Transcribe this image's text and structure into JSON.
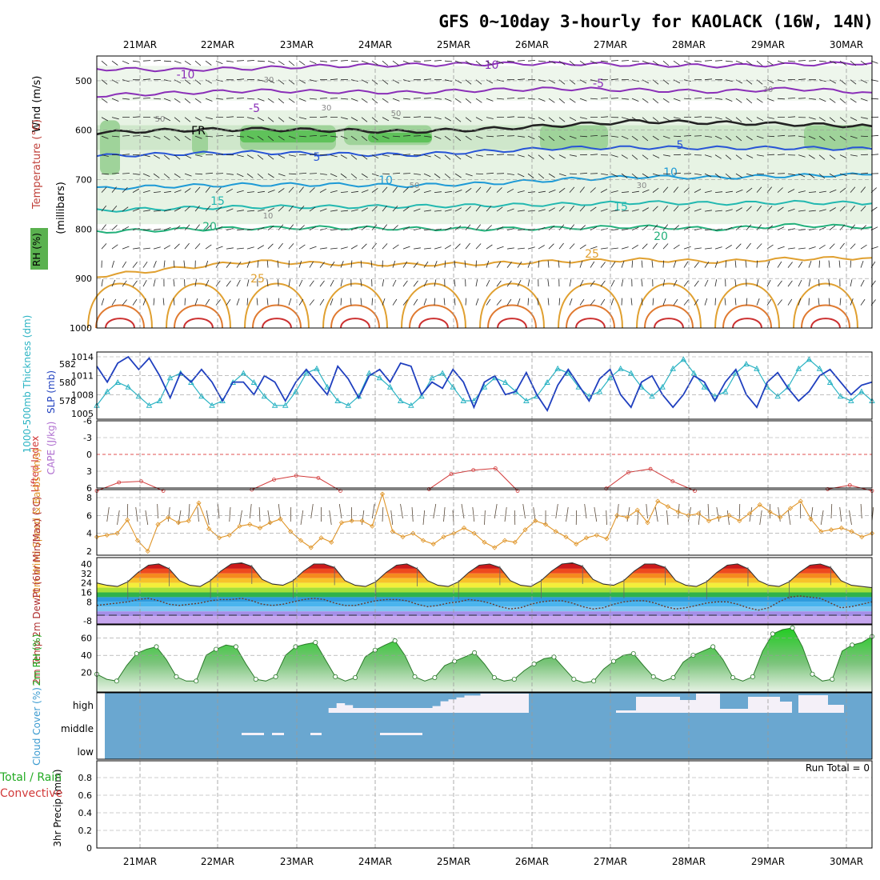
{
  "title": "GFS 0~10day 3-hourly for KAOLACK (16W, 14N)",
  "days": [
    "21MAR",
    "22MAR",
    "23MAR",
    "24MAR",
    "25MAR",
    "26MAR",
    "27MAR",
    "28MAR",
    "29MAR",
    "30MAR"
  ],
  "colors": {
    "grid": "#9a9a9a",
    "slp": "#1f3fbf",
    "thickness": "#2ab3c3",
    "li": "#d23a3a",
    "wind_speed": "#e0962a",
    "rh_green": "#4caf50",
    "cloud_bg": "#6aa7d0",
    "cloud_fill": "#f4f0f8"
  },
  "chart_data": [
    {
      "type": "contour",
      "panel": "upper-air",
      "xlabel": "",
      "ylabel": "(millibars)",
      "side_labels": [
        "Wind (m/s)",
        "Temperature (°C)",
        "RH (%)"
      ],
      "yticks": [
        500,
        600,
        700,
        800,
        900,
        1000
      ],
      "isotherm_labels": [
        "-10",
        "-10",
        "-5",
        "-5",
        "5",
        "5",
        "10",
        "10",
        "15",
        "15",
        "20",
        "20",
        "25",
        "25",
        "FR"
      ],
      "rh_labels": [
        "30",
        "30",
        "50",
        "50",
        "50",
        "30",
        "30",
        "10"
      ],
      "isotherms": [
        {
          "name": "-10",
          "p": [
            476,
            478,
            475,
            470,
            468,
            466,
            465,
            468,
            470,
            467,
            464
          ]
        },
        {
          "name": "-5",
          "p": [
            530,
            525,
            520,
            522,
            524,
            519,
            516,
            519,
            522,
            516,
            524
          ]
        },
        {
          "name": "FR",
          "p": [
            605,
            600,
            598,
            600,
            603,
            598,
            590,
            582,
            585,
            588,
            592
          ]
        },
        {
          "name": "5",
          "p": [
            652,
            648,
            645,
            648,
            650,
            643,
            636,
            635,
            636,
            636,
            638
          ]
        },
        {
          "name": "10",
          "p": [
            718,
            713,
            710,
            710,
            712,
            708,
            700,
            694,
            696,
            692,
            690
          ]
        },
        {
          "name": "15",
          "p": [
            763,
            758,
            755,
            755,
            754,
            752,
            750,
            746,
            748,
            746,
            748
          ]
        },
        {
          "name": "20",
          "p": [
            805,
            801,
            798,
            797,
            799,
            800,
            798,
            795,
            800,
            792,
            796
          ]
        },
        {
          "name": "25",
          "p": [
            895,
            880,
            865,
            870,
            872,
            870,
            865,
            862,
            866,
            860,
            858
          ]
        }
      ]
    },
    {
      "type": "line",
      "panel": "slp-thickness",
      "ylabel_left": "1000-500mb Thickness (dm)",
      "ylabel_right": "SLP (mb)",
      "yticks_left": [
        578,
        580,
        582
      ],
      "yticks_right": [
        1005,
        1008,
        1011,
        1014
      ],
      "series": [
        {
          "name": "SLP (mb)",
          "values": [
            1012.5,
            1010,
            1013,
            1014,
            1012,
            1013.8,
            1011,
            1007.5,
            1011.5,
            1010,
            1012,
            1010,
            1007,
            1010,
            1010,
            1008,
            1011,
            1010,
            1007,
            1010,
            1012,
            1010,
            1008,
            1012.5,
            1010.5,
            1007.5,
            1011,
            1012,
            1010,
            1013,
            1012.5,
            1008,
            1010,
            1009,
            1012,
            1010,
            1006,
            1010,
            1011,
            1008,
            1008.5,
            1011.5,
            1008,
            1005.5,
            1009.5,
            1012,
            1009.5,
            1007,
            1010.5,
            1012,
            1008,
            1006,
            1010,
            1011,
            1008,
            1006,
            1008,
            1011,
            1010,
            1007,
            1010,
            1012,
            1008,
            1006,
            1010,
            1011.5,
            1009,
            1007,
            1008.5,
            1011,
            1012,
            1010,
            1008,
            1009.5,
            1010
          ]
        },
        {
          "name": "Thickness (dm)",
          "values": [
            577.5,
            579,
            580,
            579.5,
            578.5,
            577.5,
            578,
            580.5,
            581,
            580,
            578.5,
            577.5,
            578,
            580,
            581,
            580,
            578.5,
            577.5,
            577.5,
            579,
            581,
            581.5,
            579.5,
            578,
            577.5,
            578.5,
            581,
            580.5,
            579.5,
            578,
            577.5,
            578.5,
            580.5,
            581,
            579.5,
            578,
            578,
            579.5,
            580.5,
            580,
            579,
            578,
            578.5,
            580,
            581.5,
            581,
            579.5,
            578.5,
            579,
            580.5,
            581.5,
            581,
            579.5,
            578.5,
            579.5,
            581.5,
            582.5,
            581,
            579.5,
            578.5,
            579,
            581,
            582,
            581.5,
            579.5,
            578.5,
            579.5,
            581.5,
            582.5,
            581.5,
            580,
            578.5,
            578,
            579,
            578
          ]
        }
      ]
    },
    {
      "type": "line",
      "panel": "cape-li",
      "ylabel": "Lifted Index",
      "ylabel2": "CAPE (J/kg)",
      "yticks": [
        -6,
        -3,
        0,
        3,
        6
      ],
      "series": [
        {
          "name": "Lifted Index",
          "values": [
            6.5,
            5,
            4.8,
            6.5,
            null,
            null,
            null,
            6.3,
            4.5,
            3.8,
            4.2,
            6.5,
            null,
            null,
            null,
            6.2,
            3.5,
            2.8,
            2.5,
            6.5,
            null,
            null,
            null,
            6.1,
            3.2,
            2.6,
            4.8,
            6.5,
            null,
            null,
            null,
            null,
            null,
            6.2,
            5.5,
            6.5
          ]
        }
      ]
    },
    {
      "type": "line",
      "panel": "wind10m",
      "ylabel": "10m Wind Speed & Barbs (m/s)",
      "yticks": [
        2,
        4,
        6,
        8
      ],
      "series": [
        {
          "name": "10m Wind Speed",
          "values": [
            3.6,
            3.8,
            4,
            5.5,
            3.2,
            2,
            5,
            5.8,
            5.2,
            5.4,
            7.4,
            4.5,
            3.5,
            3.8,
            4.8,
            5,
            4.6,
            5.2,
            5.6,
            4.2,
            3.2,
            2.4,
            3.5,
            3,
            5.2,
            5.4,
            5.4,
            4.8,
            8.4,
            4.2,
            3.6,
            4,
            3.2,
            2.8,
            3.6,
            4,
            4.6,
            4,
            3,
            2.4,
            3.2,
            3,
            4.4,
            5.4,
            5,
            4.2,
            3.6,
            2.8,
            3.5,
            3.8,
            3.4,
            6,
            5.8,
            6.6,
            5.2,
            7.6,
            7,
            6.4,
            6,
            6.2,
            5.4,
            5.8,
            6,
            5.4,
            6.2,
            7.2,
            6.4,
            5.8,
            6.8,
            7.6,
            5.6,
            4.2,
            4.4,
            4.6,
            4.2,
            3.6,
            4
          ]
        }
      ]
    },
    {
      "type": "area",
      "panel": "temperature",
      "ylabel": "2m Temp 2m DewPt (6hr Min/Max) (°C)",
      "yticks": [
        -8,
        8,
        16,
        24,
        32,
        40
      ],
      "series": [
        {
          "name": "2m Temp",
          "values": [
            24,
            22,
            21,
            25,
            33,
            39,
            40,
            36,
            26,
            22,
            21,
            26,
            34,
            40,
            41,
            38,
            27,
            23,
            22,
            26,
            34,
            40,
            40,
            37,
            26,
            22,
            21,
            25,
            33,
            39,
            40,
            36,
            26,
            22,
            21,
            25,
            33,
            39,
            40,
            37,
            26,
            22,
            21,
            26,
            34,
            40,
            41,
            38,
            27,
            23,
            22,
            26,
            34,
            40,
            40,
            37,
            26,
            22,
            21,
            25,
            33,
            39,
            40,
            36,
            26,
            22,
            21,
            25,
            33,
            39,
            40,
            37,
            26,
            22,
            21,
            20
          ]
        },
        {
          "name": "2m DewPt",
          "values": [
            5,
            6,
            7,
            8,
            10,
            11,
            9,
            6,
            5,
            6,
            7,
            9,
            10,
            10,
            11,
            9,
            6,
            5,
            6,
            8,
            10,
            11,
            10,
            7,
            5,
            5,
            7,
            9,
            10,
            10,
            9,
            6,
            4,
            5,
            7,
            8,
            10,
            9,
            7,
            4,
            2,
            3,
            6,
            8,
            9,
            9,
            7,
            4,
            2,
            3,
            6,
            8,
            9,
            9,
            7,
            4,
            2,
            3,
            5,
            7,
            8,
            8,
            6,
            3,
            1,
            3,
            8,
            12,
            13,
            12,
            11,
            7,
            3,
            4,
            6,
            8
          ]
        }
      ]
    },
    {
      "type": "area",
      "panel": "rh2m",
      "ylabel": "2m RH (%)",
      "yticks": [
        20,
        40,
        60
      ],
      "series": [
        {
          "name": "2m RH",
          "values": [
            18,
            12,
            10,
            28,
            42,
            47,
            50,
            35,
            15,
            10,
            10,
            40,
            47,
            52,
            50,
            30,
            12,
            10,
            15,
            40,
            50,
            53,
            55,
            35,
            15,
            10,
            14,
            38,
            46,
            52,
            57,
            40,
            15,
            10,
            14,
            28,
            33,
            38,
            43,
            30,
            14,
            10,
            12,
            22,
            30,
            36,
            38,
            25,
            12,
            8,
            10,
            24,
            33,
            40,
            42,
            28,
            15,
            10,
            14,
            32,
            40,
            45,
            50,
            35,
            14,
            10,
            15,
            45,
            65,
            70,
            72,
            50,
            18,
            10,
            12,
            45,
            52,
            55,
            62
          ]
        }
      ]
    },
    {
      "type": "bar",
      "panel": "cloud-cover",
      "ylabel": "Cloud Cover (%)",
      "yticks": [
        "high",
        "middle",
        "low"
      ],
      "series": [
        {
          "name": "high",
          "values": [
            0,
            0,
            0,
            0,
            0,
            0,
            0,
            0,
            0,
            0,
            0,
            0,
            0,
            0,
            0,
            0,
            0,
            0,
            0,
            0,
            0,
            0,
            0,
            0,
            0,
            0,
            0,
            0,
            0,
            25,
            50,
            40,
            25,
            25,
            25,
            25,
            25,
            25,
            25,
            25,
            25,
            25,
            35,
            60,
            70,
            80,
            90,
            90,
            100,
            100,
            100,
            100,
            100,
            100,
            0,
            0,
            0,
            0,
            0,
            0,
            0,
            0,
            0,
            0,
            0,
            0,
            0,
            0,
            0,
            0,
            0,
            0,
            0,
            0,
            0,
            0,
            0,
            0,
            0,
            0,
            0,
            0,
            0,
            0,
            0,
            0,
            0,
            0,
            0,
            0,
            0,
            0,
            0,
            0,
            0,
            0,
            0
          ]
        },
        {
          "name": "middle",
          "values": [
            0,
            0,
            0,
            0,
            0,
            0,
            0,
            0,
            0,
            0,
            0,
            0,
            0,
            0,
            0,
            0,
            0,
            0,
            0,
            0,
            0,
            0,
            0,
            0,
            0,
            0,
            0,
            0,
            0,
            0,
            0,
            0,
            0,
            0,
            0,
            0,
            0,
            0,
            0,
            0,
            0,
            0,
            0,
            0,
            0,
            0,
            0,
            0,
            0,
            0,
            0,
            0,
            0,
            0,
            0,
            0,
            0,
            0,
            0,
            0,
            0,
            0,
            0,
            0,
            0,
            0,
            0,
            0,
            0,
            0,
            0,
            0,
            0,
            0,
            0,
            0,
            0,
            0,
            0,
            0,
            0,
            0,
            0,
            0,
            0,
            0,
            0,
            0,
            0,
            0,
            0,
            0,
            0,
            0,
            0,
            0,
            0
          ]
        },
        {
          "name": "low",
          "values": [
            0,
            0,
            0,
            0,
            0,
            0,
            0,
            0,
            0,
            0,
            0,
            0,
            0,
            0,
            0,
            0,
            0,
            0,
            0,
            0,
            0,
            0,
            0,
            0,
            0,
            0,
            0,
            0,
            0,
            0,
            0,
            0,
            0,
            0,
            0,
            0,
            0,
            0,
            0,
            0,
            0,
            0,
            0,
            0,
            0,
            0,
            0,
            0,
            0,
            0,
            0,
            0,
            0,
            0,
            0,
            0,
            0,
            0,
            0,
            0,
            0,
            0,
            0,
            0,
            0,
            0,
            0,
            0,
            0,
            0,
            0,
            0,
            0,
            0,
            0,
            0,
            0,
            0,
            0,
            0,
            0,
            0,
            0,
            0,
            0,
            0,
            0,
            0,
            0,
            0,
            0,
            0,
            0,
            0,
            0,
            0,
            0
          ]
        }
      ]
    },
    {
      "type": "bar",
      "panel": "precip",
      "ylabel": "3hr Precip (mm)",
      "ylabel2": "Total / Rain",
      "ylabel3": "Convective",
      "annotation": "Run Total = 0",
      "yticks": [
        0,
        0.2,
        0.4,
        0.6,
        0.8
      ],
      "series": [
        {
          "name": "Total / Rain",
          "values": [
            0,
            0,
            0,
            0,
            0,
            0,
            0,
            0,
            0,
            0
          ]
        },
        {
          "name": "Convective",
          "values": [
            0,
            0,
            0,
            0,
            0,
            0,
            0,
            0,
            0,
            0
          ]
        }
      ]
    }
  ]
}
